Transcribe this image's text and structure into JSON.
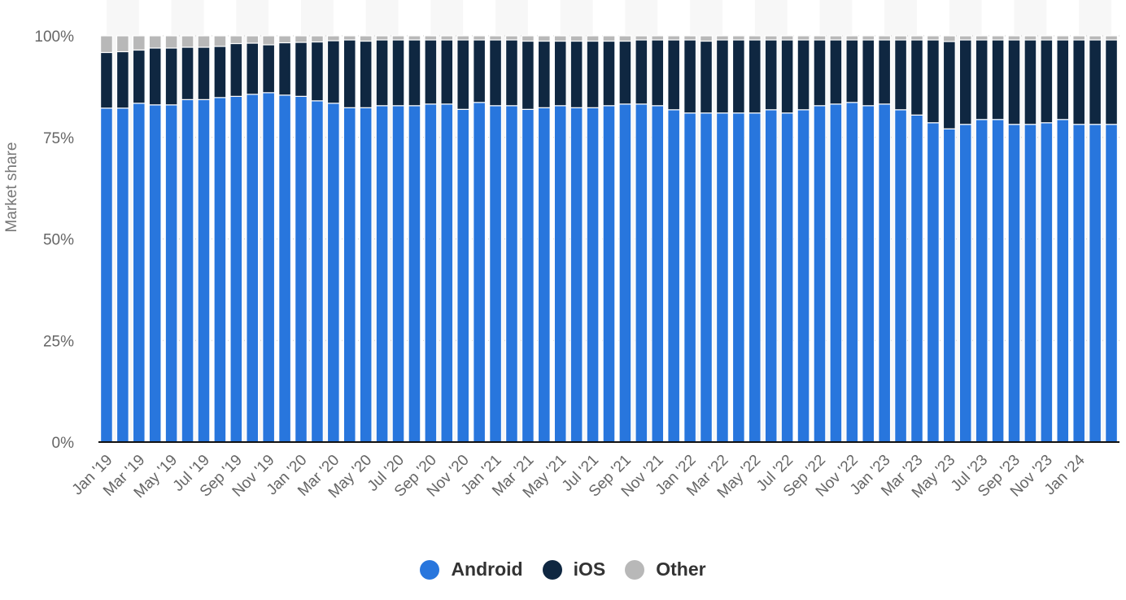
{
  "chart_data": {
    "type": "bar",
    "stacked": true,
    "ylabel": "Market share",
    "ylim": [
      0,
      100
    ],
    "y_ticks": [
      "0%",
      "25%",
      "50%",
      "75%",
      "100%"
    ],
    "grid": "horizontal dotted",
    "legend_position": "bottom-center",
    "categories": [
      "Jan '19",
      "Feb '19",
      "Mar '19",
      "Apr '19",
      "May '19",
      "Jun '19",
      "Jul '19",
      "Aug '19",
      "Sep '19",
      "Oct '19",
      "Nov '19",
      "Dec '19",
      "Jan '20",
      "Feb '20",
      "Mar '20",
      "Apr '20",
      "May '20",
      "Jun '20",
      "Jul '20",
      "Aug '20",
      "Sep '20",
      "Oct '20",
      "Nov '20",
      "Dec '20",
      "Jan '21",
      "Feb '21",
      "Mar '21",
      "Apr '21",
      "May '21",
      "Jun '21",
      "Jul '21",
      "Aug '21",
      "Sep '21",
      "Oct '21",
      "Nov '21",
      "Dec '21",
      "Jan '22",
      "Feb '22",
      "Mar '22",
      "Apr '22",
      "May '22",
      "Jun '22",
      "Jul '22",
      "Aug '22",
      "Sep '22",
      "Oct '22",
      "Nov '22",
      "Dec '22",
      "Jan '23",
      "Feb '23",
      "Mar '23",
      "Apr '23",
      "May '23",
      "Jun '23",
      "Jul '23",
      "Aug '23",
      "Sep '23",
      "Oct '23",
      "Nov '23",
      "Dec '23",
      "Jan '24",
      "Feb '24",
      "Mar '24"
    ],
    "x_tick_labels": [
      "Jan '19",
      "Mar '19",
      "May '19",
      "Jul '19",
      "Sep '19",
      "Nov '19",
      "Jan '20",
      "Mar '20",
      "May '20",
      "Jul '20",
      "Sep '20",
      "Nov '20",
      "Jan '21",
      "Mar '21",
      "May '21",
      "Jul '21",
      "Sep '21",
      "Nov '21",
      "Jan '22",
      "Mar '22",
      "May '22",
      "Jul '22",
      "Sep '22",
      "Nov '22",
      "Jan '23",
      "Mar '23",
      "May '23",
      "Jul '23",
      "Sep '23",
      "Nov '23",
      "Jan '24"
    ],
    "series": [
      {
        "name": "Android",
        "color": "#2876dd",
        "values": [
          82.2,
          82.2,
          83.4,
          83.0,
          83.0,
          84.3,
          84.3,
          84.8,
          85.1,
          85.6,
          86.0,
          85.4,
          85.1,
          84.0,
          83.4,
          82.3,
          82.3,
          82.8,
          82.8,
          82.8,
          83.2,
          83.2,
          81.9,
          83.6,
          82.8,
          82.8,
          81.9,
          82.3,
          82.8,
          82.3,
          82.3,
          82.8,
          83.2,
          83.2,
          82.8,
          81.8,
          81.0,
          81.0,
          81.0,
          81.0,
          81.0,
          81.8,
          81.0,
          81.8,
          82.8,
          83.2,
          83.6,
          82.8,
          83.2,
          81.8,
          80.5,
          78.6,
          77.1,
          78.2,
          79.4,
          79.4,
          78.2,
          78.2,
          78.6,
          79.4,
          78.2,
          78.2,
          78.2
        ]
      },
      {
        "name": "iOS",
        "color": "#0f2741",
        "values": [
          13.7,
          13.9,
          13.1,
          14.0,
          14.0,
          12.9,
          12.9,
          12.6,
          13.0,
          12.6,
          11.8,
          12.9,
          13.3,
          14.5,
          15.4,
          16.7,
          16.4,
          16.2,
          16.2,
          16.2,
          15.8,
          15.8,
          17.1,
          15.4,
          16.2,
          16.2,
          16.8,
          16.4,
          15.9,
          16.4,
          16.4,
          15.9,
          15.5,
          15.8,
          16.2,
          17.2,
          18.0,
          17.7,
          18.0,
          18.0,
          18.0,
          17.2,
          18.0,
          17.2,
          16.2,
          15.8,
          15.4,
          16.2,
          15.8,
          17.2,
          18.5,
          20.4,
          21.5,
          20.8,
          19.6,
          19.6,
          20.8,
          20.8,
          20.4,
          19.6,
          20.8,
          20.8,
          20.8
        ]
      },
      {
        "name": "Other",
        "color": "#b8b8b8",
        "values": [
          4.1,
          3.9,
          3.5,
          3.0,
          3.0,
          2.8,
          2.8,
          2.6,
          1.9,
          1.8,
          2.2,
          1.7,
          1.6,
          1.5,
          1.2,
          1.0,
          1.3,
          1.0,
          1.0,
          1.0,
          1.0,
          1.0,
          1.0,
          1.0,
          1.0,
          1.0,
          1.3,
          1.3,
          1.3,
          1.3,
          1.3,
          1.3,
          1.3,
          1.0,
          1.0,
          1.0,
          1.0,
          1.3,
          1.0,
          1.0,
          1.0,
          1.0,
          1.0,
          1.0,
          1.0,
          1.0,
          1.0,
          1.0,
          1.0,
          1.0,
          1.0,
          1.0,
          1.4,
          1.0,
          1.0,
          1.0,
          1.0,
          1.0,
          1.0,
          1.0,
          1.0,
          1.0,
          1.0
        ]
      }
    ]
  }
}
